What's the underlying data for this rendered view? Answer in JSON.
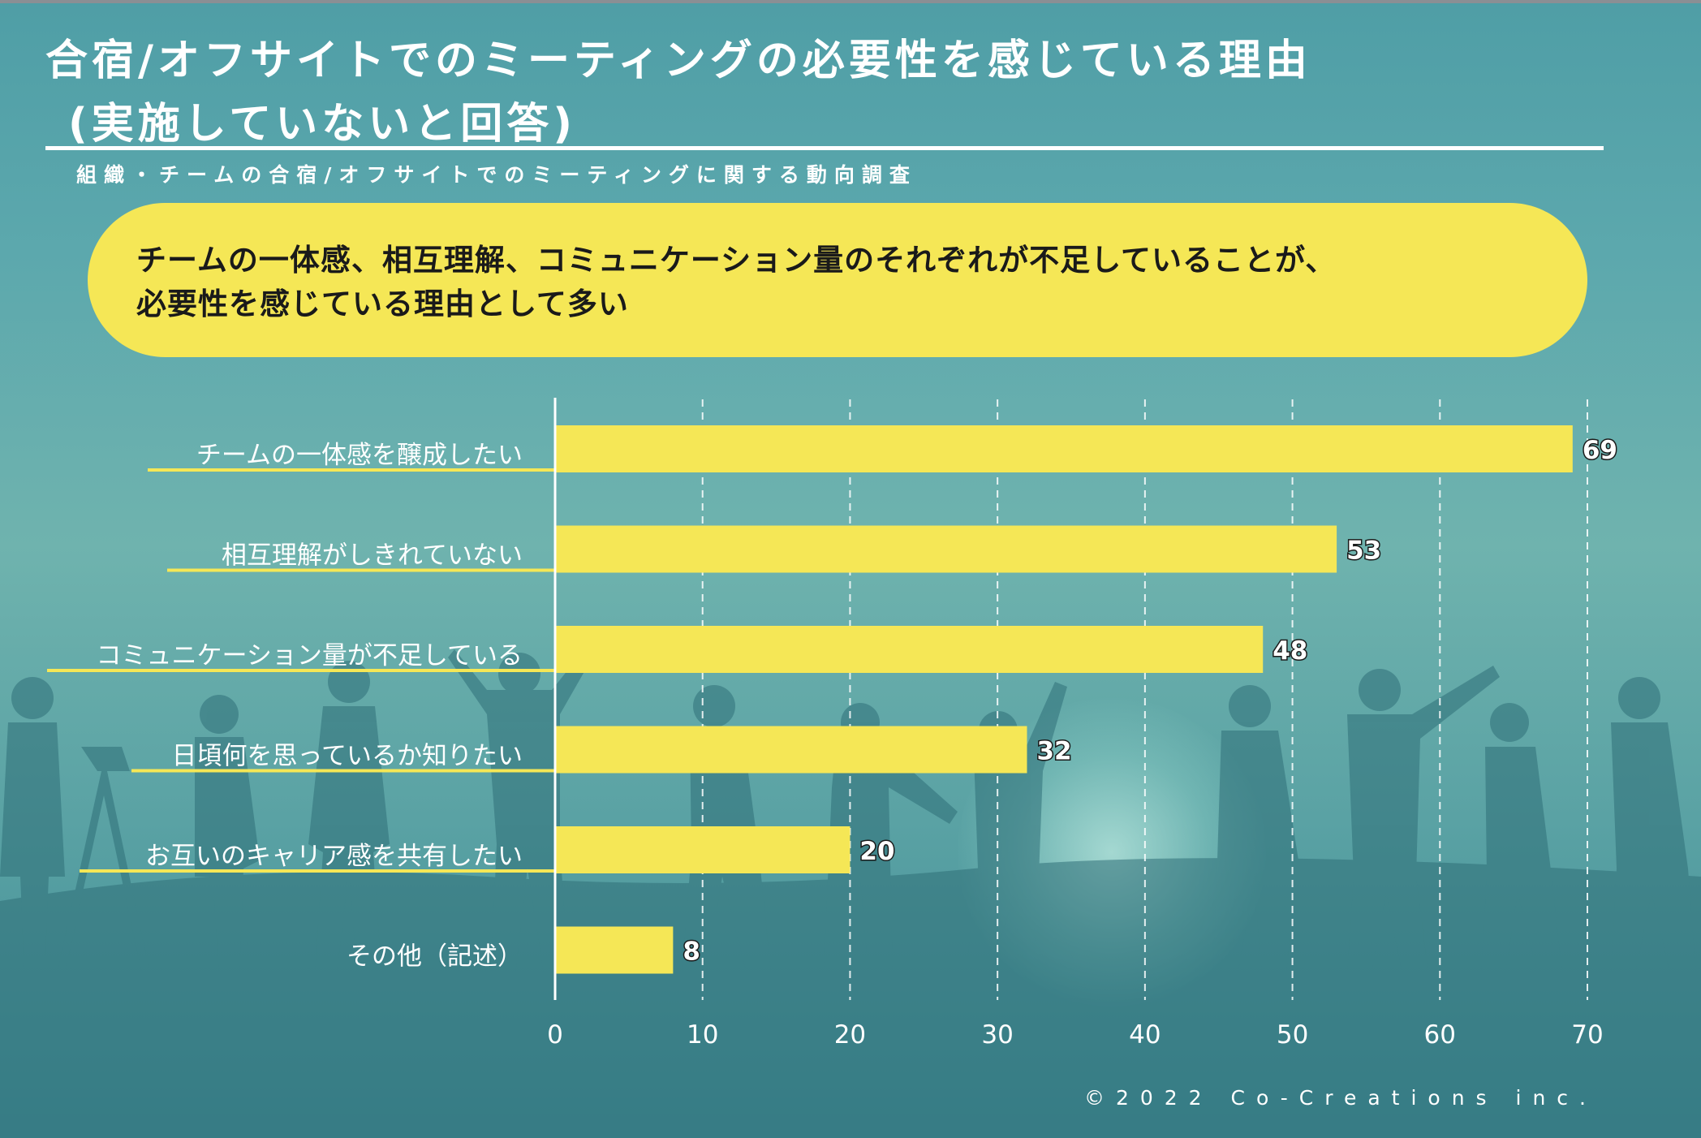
{
  "title": {
    "line1": "合宿/オフサイトでのミーティングの必要性を感じている理由",
    "line2": "(実施していないと回答)"
  },
  "subtitle": "組織・チームの合宿/オフサイトでのミーティングに関する動向調査",
  "callout": "チームの一体感、相互理解、コミュニケーション量のそれぞれが不足していることが、\n必要性を感じている理由として多い",
  "copyright": "©2022 Co-Creations inc.",
  "colors": {
    "bar": "#f5e756",
    "callout": "#f5e756",
    "background": "#5ca8ad",
    "text": "#ffffff"
  },
  "chart_data": {
    "type": "bar",
    "orientation": "horizontal",
    "categories": [
      "チームの一体感を醸成したい",
      "相互理解がしきれていない",
      "コミュニケーション量が不足している",
      "日頃何を思っているか知りたい",
      "お互いのキャリア感を共有したい",
      "その他（記述）"
    ],
    "values": [
      69,
      53,
      48,
      32,
      20,
      8
    ],
    "xlim": [
      0,
      70
    ],
    "xticks": [
      0,
      10,
      20,
      30,
      40,
      50,
      60,
      70
    ],
    "grid": true,
    "legend": "none",
    "data_labels": true
  }
}
